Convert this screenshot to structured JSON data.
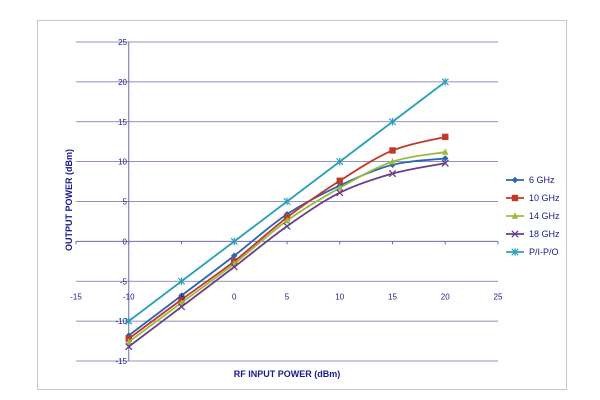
{
  "chart_data": {
    "type": "line",
    "xlabel": "RF INPUT POWER (dBm)",
    "ylabel": "OUTPUT POWER (dBm)",
    "xlim": [
      -15,
      25
    ],
    "ylim": [
      -15,
      25
    ],
    "x_ticks": [
      -15,
      -10,
      -5,
      0,
      5,
      10,
      15,
      20,
      25
    ],
    "y_ticks": [
      -15,
      -10,
      -5,
      0,
      5,
      10,
      15,
      20,
      25
    ],
    "grid": "horizontal",
    "legend_position": "right",
    "x": [
      -10,
      -5,
      0,
      5,
      10,
      15,
      20
    ],
    "series": [
      {
        "name": "6 GHz",
        "values": [
          -11.8,
          -6.8,
          -1.8,
          3.4,
          7.0,
          9.6,
          10.4
        ],
        "color": "#2d64b4",
        "marker": "diamond"
      },
      {
        "name": "10 GHz",
        "values": [
          -12.2,
          -7.3,
          -2.5,
          3.0,
          7.6,
          11.4,
          13.1
        ],
        "color": "#c0392b",
        "marker": "square"
      },
      {
        "name": "14 GHz",
        "values": [
          -12.6,
          -7.7,
          -2.8,
          2.6,
          6.7,
          10.0,
          11.2
        ],
        "color": "#9bbb3c",
        "marker": "triangle"
      },
      {
        "name": "18 GHz",
        "values": [
          -13.2,
          -8.2,
          -3.2,
          1.9,
          6.1,
          8.5,
          9.8
        ],
        "color": "#6b3d8f",
        "marker": "x"
      },
      {
        "name": "P/I-P/O",
        "values": [
          -10,
          -5,
          0,
          5,
          10,
          15,
          20
        ],
        "color": "#2aa0b8",
        "marker": "star"
      }
    ]
  }
}
